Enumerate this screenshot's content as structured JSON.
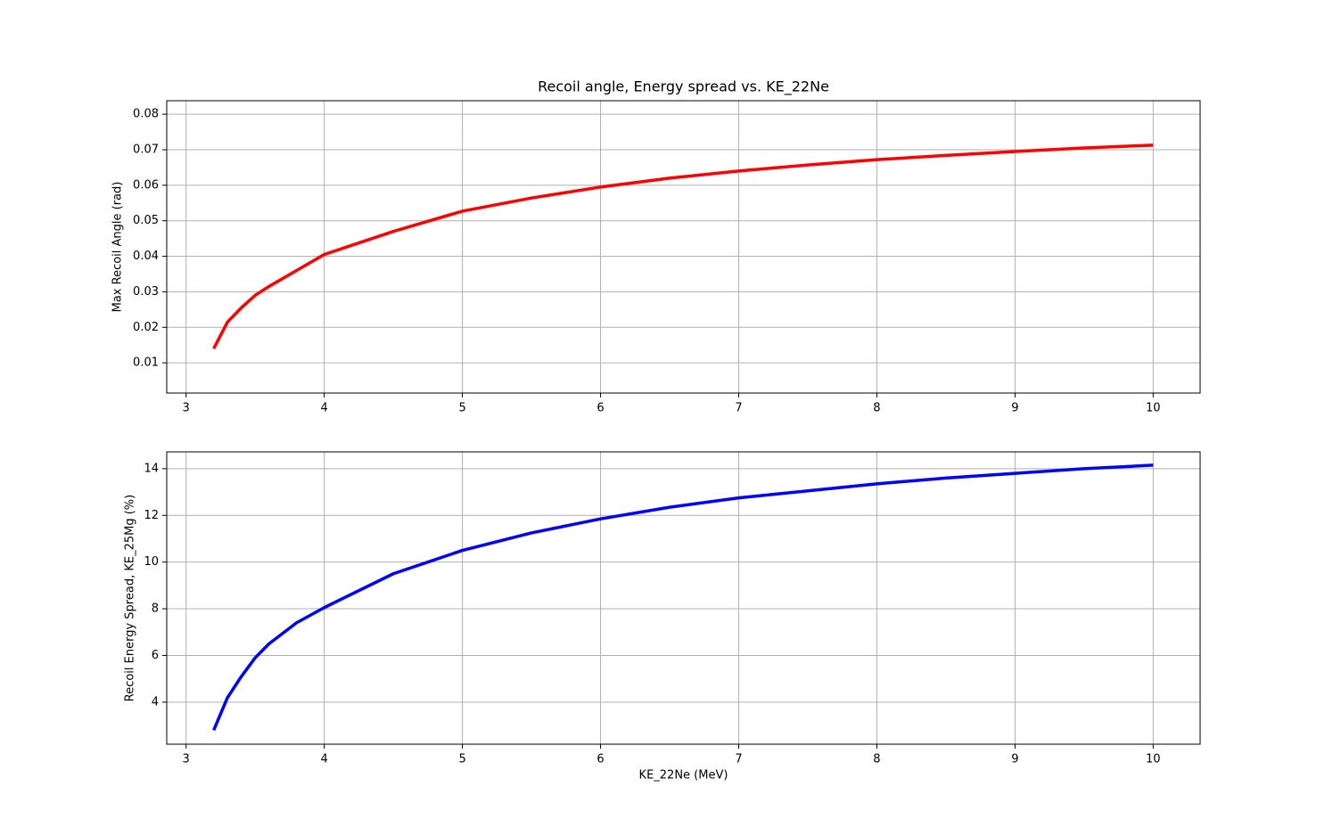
{
  "chart_data": [
    {
      "type": "line",
      "title": "Recoil angle, Energy spread vs. KE_22Ne",
      "ylabel": "Max Recoil Angle (rad)",
      "x": [
        3.2,
        3.3,
        3.4,
        3.5,
        3.6,
        3.8,
        4,
        4.5,
        5,
        5.5,
        6,
        6.5,
        7,
        7.5,
        8,
        8.5,
        9,
        9.5,
        10
      ],
      "values": [
        0.014,
        0.0215,
        0.0255,
        0.029,
        0.0315,
        0.036,
        0.0405,
        0.047,
        0.0527,
        0.0564,
        0.0595,
        0.062,
        0.064,
        0.0657,
        0.0672,
        0.0684,
        0.0695,
        0.0705,
        0.0713
      ],
      "color": "#ff0000",
      "xlim": [
        2.86,
        10.34
      ],
      "ylim": [
        0.0015,
        0.0838
      ],
      "xticks": [
        3,
        4,
        5,
        6,
        7,
        8,
        9,
        10
      ],
      "yticks": [
        0.01,
        0.02,
        0.03,
        0.04,
        0.05,
        0.06,
        0.07,
        0.08
      ],
      "grid": true
    },
    {
      "type": "line",
      "xlabel": "KE_22Ne (MeV)",
      "ylabel": "Recoil Energy Spread, KE_25Mg (%)",
      "x": [
        3.2,
        3.3,
        3.4,
        3.5,
        3.6,
        3.8,
        4,
        4.5,
        5,
        5.5,
        6,
        6.5,
        7,
        7.5,
        8,
        8.5,
        9,
        9.5,
        10
      ],
      "values": [
        2.8,
        4.2,
        5.1,
        5.9,
        6.5,
        7.4,
        8.05,
        9.5,
        10.5,
        11.25,
        11.85,
        12.35,
        12.75,
        13.05,
        13.35,
        13.6,
        13.8,
        14.0,
        14.15
      ],
      "color": "#0000ff",
      "xlim": [
        2.86,
        10.34
      ],
      "ylim": [
        2.2,
        14.72
      ],
      "xticks": [
        3,
        4,
        5,
        6,
        7,
        8,
        9,
        10
      ],
      "yticks": [
        4,
        6,
        8,
        10,
        12,
        14
      ],
      "grid": true
    }
  ]
}
